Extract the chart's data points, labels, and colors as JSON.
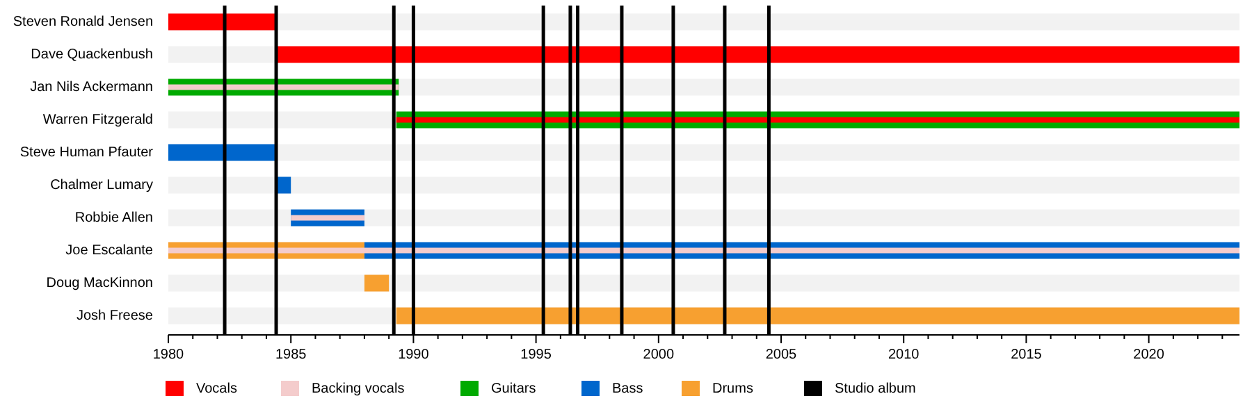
{
  "chart_data": {
    "type": "bar",
    "orientation": "horizontal",
    "stacked": false,
    "legend": "bottom",
    "categories": [
      "Steven Ronald Jensen",
      "Dave Quackenbush",
      "Jan Nils Ackermann",
      "Warren Fitzgerald",
      "Steve Human Pfauter",
      "Chalmer Lumary",
      "Robbie Allen",
      "Joe Escalante",
      "Doug MacKinnon",
      "Josh Freese"
    ],
    "series": [
      {
        "name": "Vocals",
        "color": "#ff0000",
        "base": [
          1980,
          1984.4,
          null,
          1989.3,
          null,
          null,
          null,
          null,
          null,
          null
        ],
        "values": [
          4.4,
          39.3,
          null,
          34.4,
          null,
          null,
          null,
          null,
          null,
          null
        ]
      },
      {
        "name": "Backing vocals",
        "color": "#f4cccc",
        "base": [
          null,
          null,
          1980,
          null,
          null,
          null,
          1985,
          1980,
          null,
          null
        ],
        "values": [
          null,
          null,
          9.4,
          null,
          null,
          null,
          3,
          43.7,
          null,
          null
        ]
      },
      {
        "name": "Guitars",
        "color": "#00aa00",
        "base": [
          null,
          null,
          1980,
          1989.3,
          null,
          null,
          null,
          null,
          null,
          null
        ],
        "values": [
          null,
          null,
          9.4,
          34.4,
          null,
          null,
          null,
          null,
          null,
          null
        ]
      },
      {
        "name": "Bass",
        "color": "#0066cc",
        "base": [
          null,
          null,
          null,
          null,
          1980,
          1984.4,
          1985,
          1988,
          null,
          null
        ],
        "values": [
          null,
          null,
          null,
          null,
          4.4,
          0.6,
          3,
          35.7,
          null,
          null
        ]
      },
      {
        "name": "Drums",
        "color": "#f7a030",
        "base": [
          null,
          null,
          null,
          null,
          null,
          null,
          null,
          1980,
          1988,
          1989.3
        ],
        "values": [
          null,
          null,
          null,
          null,
          null,
          null,
          null,
          8,
          1,
          34.4
        ]
      }
    ],
    "xlim": [
      1980,
      2023.7
    ],
    "xticks": [
      1980,
      {
        "value": 1981,
        "label": null
      },
      {
        "value": 1982,
        "label": null
      },
      {
        "value": 1983,
        "label": null
      },
      {
        "value": 1984,
        "label": null
      },
      1985,
      {
        "value": 1986,
        "label": null
      },
      {
        "value": 1987,
        "label": null
      },
      {
        "value": 1988,
        "label": null
      },
      {
        "value": 1989,
        "label": null
      },
      1990,
      {
        "value": 1991,
        "label": null
      },
      {
        "value": 1992,
        "label": null
      },
      {
        "value": 1993,
        "label": null
      },
      {
        "value": 1994,
        "label": null
      },
      1995,
      {
        "value": 1996,
        "label": null
      },
      {
        "value": 1997,
        "label": null
      },
      {
        "value": 1998,
        "label": null
      },
      {
        "value": 1999,
        "label": null
      },
      2000,
      {
        "value": 2001,
        "label": null
      },
      {
        "value": 2002,
        "label": null
      },
      {
        "value": 2003,
        "label": null
      },
      {
        "value": 2004,
        "label": null
      },
      2005,
      {
        "value": 2006,
        "label": null
      },
      {
        "value": 2007,
        "label": null
      },
      {
        "value": 2008,
        "label": null
      },
      {
        "value": 2009,
        "label": null
      },
      2010,
      {
        "value": 2011,
        "label": null
      },
      {
        "value": 2012,
        "label": null
      },
      {
        "value": 2013,
        "label": null
      },
      {
        "value": 2014,
        "label": null
      },
      2015,
      {
        "value": 2016,
        "label": null
      },
      {
        "value": 2017,
        "label": null
      },
      {
        "value": 2018,
        "label": null
      },
      {
        "value": 2019,
        "label": null
      },
      2020,
      {
        "value": 2021,
        "label": null
      },
      {
        "value": 2022,
        "label": null
      },
      {
        "value": 2023,
        "label": null
      }
    ],
    "ref_lines": [
      {
        "axis": "x",
        "value": 1982.3,
        "label": "Studio album",
        "color": "#000000"
      },
      {
        "axis": "x",
        "value": 1984.4,
        "color": "#000000"
      },
      {
        "axis": "x",
        "value": 1989.2,
        "color": "#000000"
      },
      {
        "axis": "x",
        "value": 1990,
        "color": "#000000"
      },
      {
        "axis": "x",
        "value": 1995.3,
        "color": "#000000"
      },
      {
        "axis": "x",
        "value": 1996.4,
        "color": "#000000"
      },
      {
        "axis": "x",
        "value": 1996.7,
        "color": "#000000"
      },
      {
        "axis": "x",
        "value": 1998.5,
        "color": "#000000"
      },
      {
        "axis": "x",
        "value": 2000.6,
        "color": "#000000"
      },
      {
        "axis": "x",
        "value": 2002.7,
        "color": "#000000"
      },
      {
        "axis": "x",
        "value": 2004.5,
        "color": "#000000"
      }
    ]
  }
}
